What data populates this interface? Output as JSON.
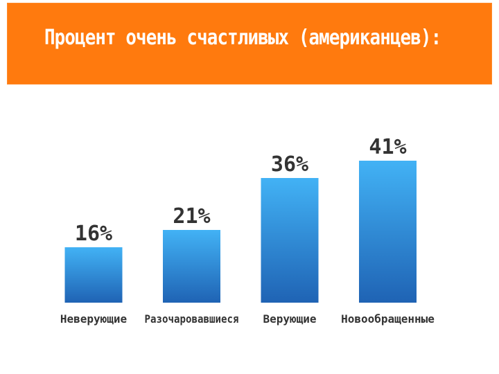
{
  "header": {
    "title": "Процент очень счастливых (американцев):"
  },
  "colors": {
    "header_background": "#ff7a0e",
    "bar_top": "#42b2f5",
    "bar_bottom": "#1f63b4",
    "text": "#333333"
  },
  "chart_data": {
    "type": "bar",
    "title": "Процент очень счастливых (американцев):",
    "categories": [
      "Неверующие",
      "Разочаровавшиеся",
      "Верующие",
      "Новообращенные"
    ],
    "values": [
      16,
      21,
      36,
      41
    ],
    "value_labels": [
      "16%",
      "21%",
      "36%",
      "41%"
    ],
    "ylim": [
      0,
      50
    ],
    "grid": false,
    "legend": "none"
  }
}
